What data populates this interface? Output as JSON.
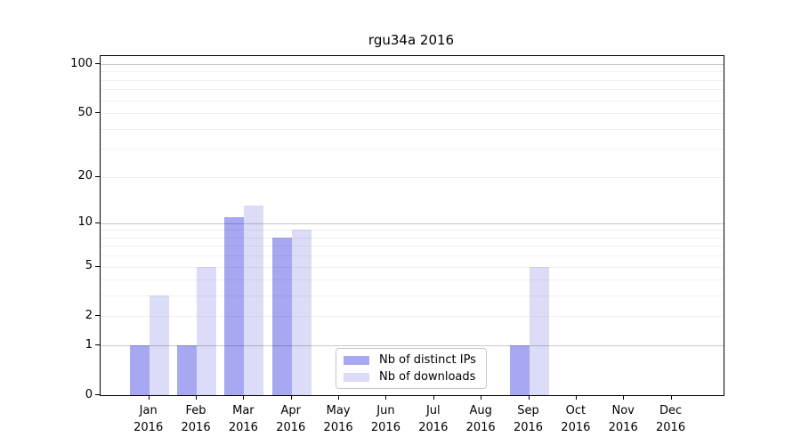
{
  "title": "rgu34a 2016",
  "chart_data": {
    "type": "bar",
    "title": "rgu34a 2016",
    "categories": [
      "Jan",
      "Feb",
      "Mar",
      "Apr",
      "May",
      "Jun",
      "Jul",
      "Aug",
      "Sep",
      "Oct",
      "Nov",
      "Dec"
    ],
    "category_year": "2016",
    "series": [
      {
        "name": "Nb of distinct IPs",
        "color": "#a8a8f2",
        "values": [
          1,
          1,
          11,
          8,
          0,
          0,
          0,
          0,
          1,
          0,
          0,
          0
        ]
      },
      {
        "name": "Nb of downloads",
        "color": "#dcdcf8",
        "values": [
          3,
          5,
          13,
          9,
          0,
          0,
          0,
          0,
          5,
          0,
          0,
          0
        ]
      }
    ],
    "y_axis": {
      "scale": "log1p",
      "tick_values": [
        0,
        1,
        2,
        5,
        10,
        20,
        50,
        100
      ],
      "tick_labels": [
        "0",
        "1",
        "2",
        "5",
        "10",
        "20",
        "50",
        "100"
      ],
      "minor_grid_values": [
        2,
        3,
        4,
        5,
        6,
        7,
        8,
        9,
        20,
        30,
        40,
        50,
        60,
        70,
        80,
        90
      ],
      "major_grid_values": [
        1,
        10,
        100
      ],
      "ylim": [
        0,
        112
      ]
    },
    "grid": "horizontal",
    "legend": {
      "position": "inside-bottom-center",
      "items": [
        {
          "label": "Nb of distinct IPs",
          "color": "#a8a8f2"
        },
        {
          "label": "Nb of downloads",
          "color": "#dcdcf8"
        }
      ]
    },
    "colors": {
      "distinct_ips": "#a8a8f2",
      "downloads": "#dcdcf8",
      "axis": "#000000",
      "major_grid": "#c9c9c9",
      "minor_grid": "#ebebeb",
      "background": "#ffffff"
    }
  }
}
